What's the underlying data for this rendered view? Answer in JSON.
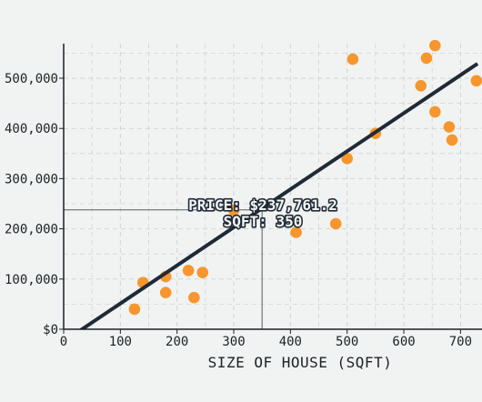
{
  "chart_data": {
    "type": "scatter",
    "title": "",
    "xlabel": "SIZE OF HOUSE (SQFT)",
    "ylabel": "",
    "xlim": [
      0,
      730
    ],
    "ylim": [
      0,
      565000
    ],
    "grid": true,
    "x_ticks": [
      0,
      100,
      200,
      300,
      400,
      500,
      600,
      700
    ],
    "x_tick_labels": [
      "0",
      "100",
      "200",
      "300",
      "400",
      "500",
      "600",
      "700"
    ],
    "y_ticks": [
      0,
      100000,
      200000,
      300000,
      400000,
      500000
    ],
    "y_tick_labels": [
      "$0",
      "100,000",
      "200,000",
      "300,000",
      "400,000",
      "500,000"
    ],
    "points": [
      {
        "x": 125,
        "y": 40000
      },
      {
        "x": 140,
        "y": 93000
      },
      {
        "x": 180,
        "y": 73000
      },
      {
        "x": 180,
        "y": 105000
      },
      {
        "x": 220,
        "y": 117000
      },
      {
        "x": 230,
        "y": 63000
      },
      {
        "x": 245,
        "y": 113000
      },
      {
        "x": 300,
        "y": 237000
      },
      {
        "x": 410,
        "y": 193000
      },
      {
        "x": 480,
        "y": 210000
      },
      {
        "x": 500,
        "y": 340000
      },
      {
        "x": 510,
        "y": 538000
      },
      {
        "x": 550,
        "y": 390000
      },
      {
        "x": 630,
        "y": 485000
      },
      {
        "x": 640,
        "y": 540000
      },
      {
        "x": 655,
        "y": 565000
      },
      {
        "x": 655,
        "y": 433000
      },
      {
        "x": 680,
        "y": 403000
      },
      {
        "x": 685,
        "y": 377000
      },
      {
        "x": 728,
        "y": 495000
      }
    ],
    "regression_line": {
      "x": [
        10,
        730
      ],
      "y": [
        -17000,
        529000
      ]
    },
    "highlight": {
      "x": 350,
      "y": 237761.2,
      "price_text": "PRICE: $237,761.2",
      "sqft_text": "SQFT: 350"
    },
    "colors": {
      "background": "#f1f3f2",
      "points": "#f7962e",
      "line": "#1f2a36",
      "grid": "#cfd5d3",
      "axis": "#1b2025",
      "crosshair": "#555c5f"
    }
  }
}
